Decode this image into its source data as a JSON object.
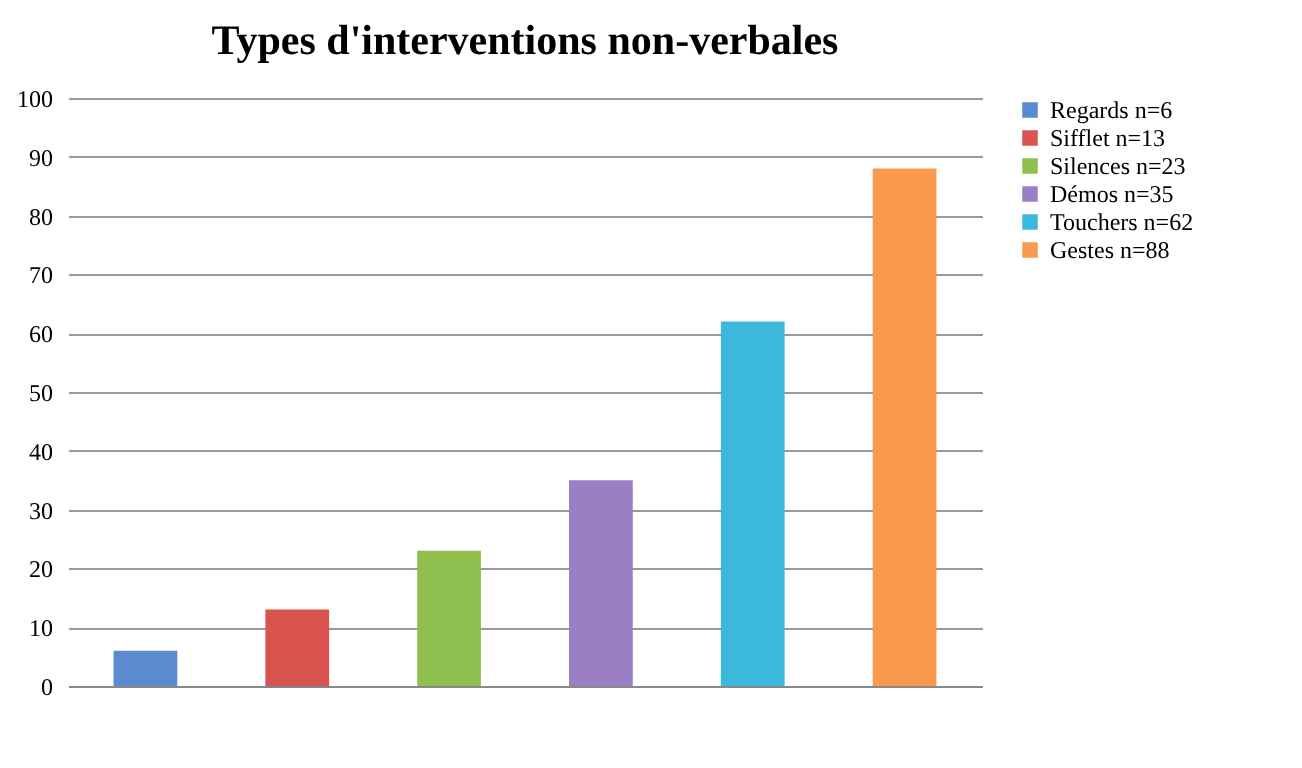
{
  "chart_data": {
    "type": "bar",
    "title": "Types d'interventions non-verbales",
    "categories": [
      null,
      null,
      null,
      null,
      null,
      null
    ],
    "series": [
      {
        "name": "Regards n=6",
        "color": "#5a8ad0",
        "values": [
          6,
          null,
          null,
          null,
          null,
          null
        ]
      },
      {
        "name": "Sifflet n=13",
        "color": "#d9534f",
        "values": [
          null,
          13,
          null,
          null,
          null,
          null
        ]
      },
      {
        "name": "Silences n=23",
        "color": "#8fc04f",
        "values": [
          null,
          null,
          23,
          null,
          null,
          null
        ]
      },
      {
        "name": "Démos n=35",
        "color": "#9b7fc4",
        "values": [
          null,
          null,
          null,
          35,
          null,
          null
        ]
      },
      {
        "name": "Touchers n=62",
        "color": "#3cb8dd",
        "values": [
          null,
          null,
          null,
          null,
          62,
          null
        ]
      },
      {
        "name": "Gestes n=88",
        "color": "#f99a4e",
        "values": [
          null,
          null,
          null,
          null,
          null,
          88
        ]
      }
    ],
    "ylim": [
      0,
      100
    ],
    "yticks": [
      0,
      10,
      20,
      30,
      40,
      50,
      60,
      70,
      80,
      90,
      100
    ],
    "grid": "y",
    "legend": "right",
    "tick_labels": "y"
  }
}
